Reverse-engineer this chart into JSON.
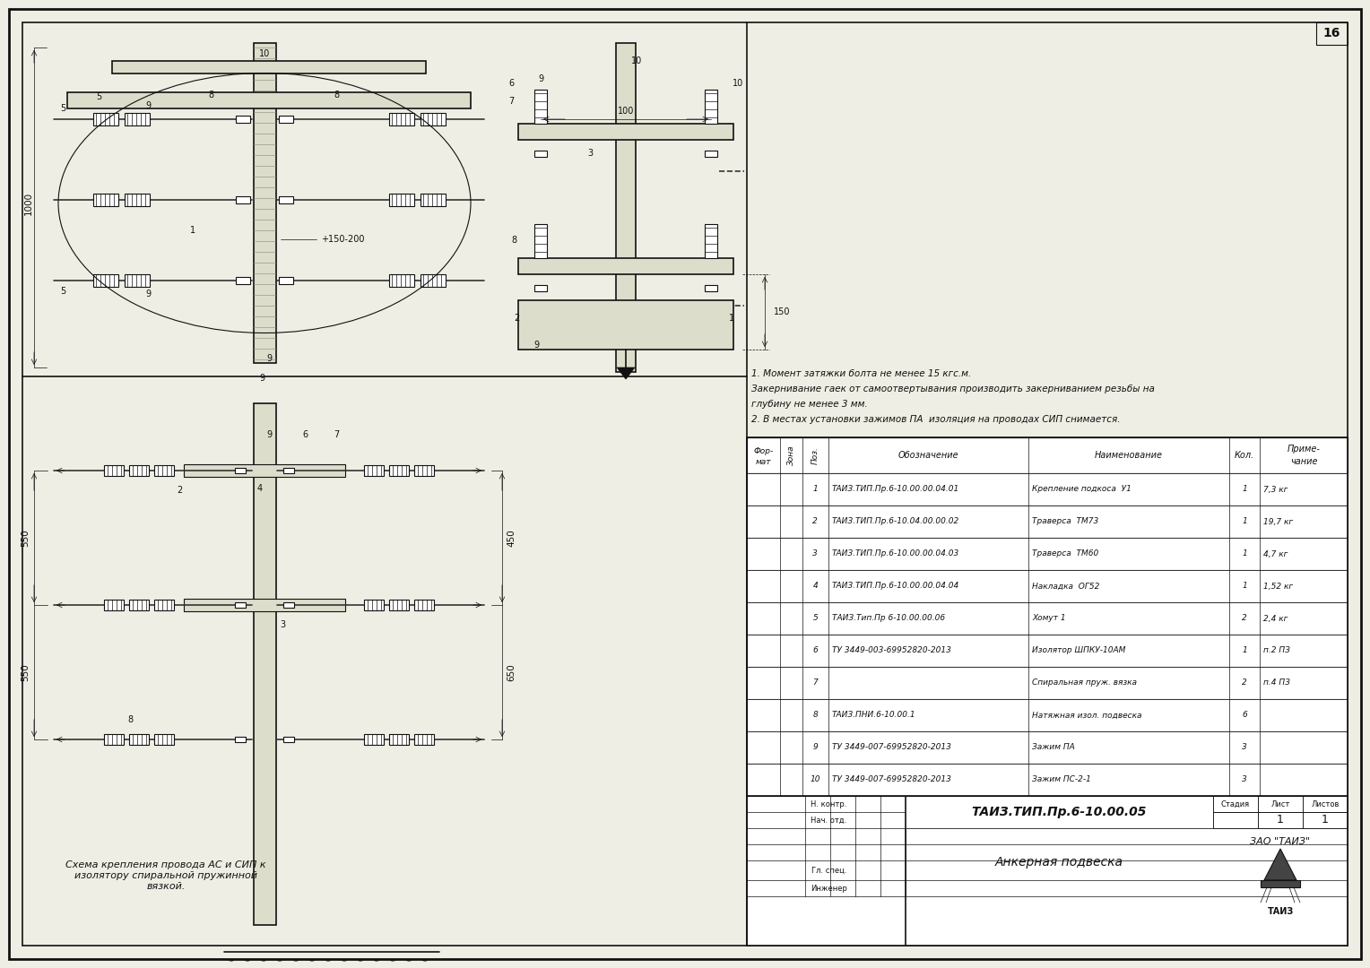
{
  "bg_color": "#eeeee4",
  "border_color": "#000000",
  "page_number": "16",
  "notes": [
    "1. Момент затяжки болта не менее 15 кгс.м.",
    "Закернивание гаек от самоотвертывания производить закерниванием резьбы на",
    "глубину не менее 3 мм.",
    "2. В местах установки зажимов ПА  изоляция на проводах СИП снимается."
  ],
  "table_col_widths": [
    32,
    22,
    25,
    195,
    195,
    30,
    85
  ],
  "table_headers": [
    "Фор-\nмат",
    "Зона",
    "Поз.",
    "Обозначение",
    "Наименование",
    "Кол.",
    "Приме-\nчание"
  ],
  "table_rows": [
    [
      "",
      "",
      "1",
      "ТАИЗ.ТИП.Пр.6-10.00.00.04.01",
      "Крепление подкоса  У1",
      "1",
      "7,3 кг"
    ],
    [
      "",
      "",
      "2",
      "ТАИЗ.ТИП.Пр.6-10.04.00.00.02",
      "Траверса  ТМ73",
      "1",
      "19,7 кг"
    ],
    [
      "",
      "",
      "3",
      "ТАИЗ.ТИП.Пр.6-10.00.00.04.03",
      "Траверса  ТМ60",
      "1",
      "4,7 кг"
    ],
    [
      "",
      "",
      "4",
      "ТАИЗ.ТИП.Пр.6-10.00.00.04.04",
      "Накладка  ОГ52",
      "1",
      "1,52 кг"
    ],
    [
      "",
      "",
      "5",
      "ТАИЗ.Тип.Пр 6-10.00.00.06",
      "Хомут 1",
      "2",
      "2,4 кг"
    ],
    [
      "",
      "",
      "6",
      "ТУ 3449-003-69952820-2013",
      "Изолятор ШПКУ-10АМ",
      "1",
      "п.2 ПЗ"
    ],
    [
      "",
      "",
      "7",
      "",
      "Спиральная пруж. вязка",
      "2",
      "п.4 ПЗ"
    ],
    [
      "",
      "",
      "8",
      "ТАИЗ.ПНИ.6-10.00.1",
      "Натяжная изол. подвеска",
      "6",
      ""
    ],
    [
      "",
      "",
      "9",
      "ТУ 3449-007-69952820-2013",
      "Зажим ПА",
      "3",
      ""
    ],
    [
      "",
      "",
      "10",
      "ТУ 3449-007-69952820-2013",
      "Зажим ПС-2-1",
      "3",
      ""
    ]
  ],
  "doc_number": "ТАИЗ.ТИП.Пр.6-10.00.05",
  "doc_name": "Анкерная подвеска",
  "company": "ЗАО \"ТАИЗ\"",
  "sheet_num": "1",
  "sheets_total": "1",
  "caption": "Схема крепления провода АС и СИП к\nизолятору спиральной пружинной\nвязкой.",
  "dim_1000": "1000",
  "dim_550a": "550",
  "dim_550b": "550",
  "dim_450": "450",
  "dim_650": "650",
  "dim_150_200": "150-200",
  "dim_150": "150",
  "dim_100": "100"
}
